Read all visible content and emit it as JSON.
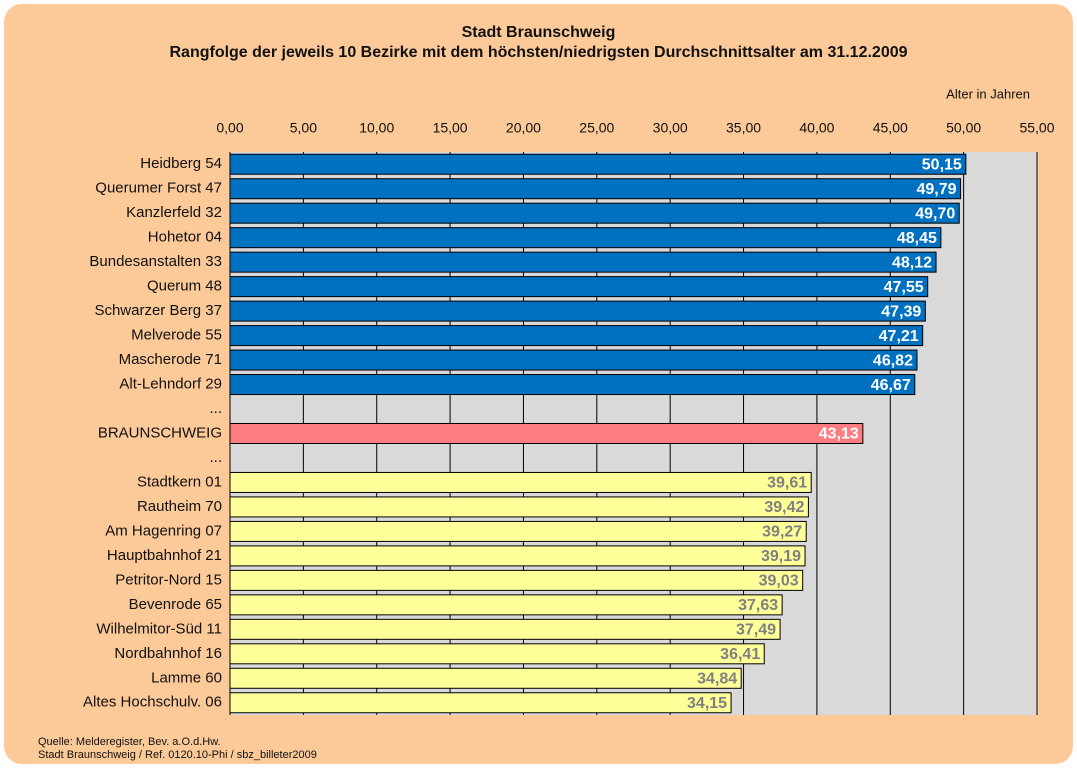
{
  "chart_data": {
    "type": "barh",
    "title": "Stadt Braunschweig",
    "subtitle": "Rangfolge der jeweils 10 Bezirke mit dem höchsten/niedrigsten  Durchschnittsalter  am 31.12.2009",
    "x_label": "Alter in Jahren",
    "notes": [
      "Quelle: Melderegister, Bev. a.O.d.Hw.",
      "Stadt Braunschweig / Ref. 0120.10-Phi / sbz_billeter2009"
    ],
    "categories": [
      "Heidberg 54",
      "Querumer Forst 47",
      "Kanzlerfeld 32",
      "Hohetor 04",
      "Bundesanstalten 33",
      "Querum 48",
      "Schwarzer Berg 37",
      "Melverode 55",
      "Mascherode 71",
      "Alt-Lehndorf 29",
      "...",
      "BRAUNSCHWEIG",
      "...",
      "Stadtkern 01",
      "Rautheim 70",
      "Am Hagenring 07",
      "Hauptbahnhof 21",
      "Petritor-Nord 15",
      "Bevenrode 65",
      "Wilhelmitor-Süd 11",
      "Nordbahnhof 16",
      "Lamme 60",
      "Altes Hochschulv. 06"
    ],
    "series": [
      {
        "color": "#0070c0",
        "label_color": "#ffffff",
        "values": [
          50.15,
          49.79,
          49.7,
          48.45,
          48.12,
          47.55,
          47.39,
          47.21,
          46.82,
          46.67,
          null,
          null,
          null,
          null,
          null,
          null,
          null,
          null,
          null,
          null,
          null,
          null,
          null
        ],
        "value_labels": [
          "50,15",
          "49,79",
          "49,70",
          "48,45",
          "48,12",
          "47,55",
          "47,39",
          "47,21",
          "46,82",
          "46,67",
          null,
          null,
          null,
          null,
          null,
          null,
          null,
          null,
          null,
          null,
          null,
          null,
          null
        ]
      },
      {
        "color": "#ff7c80",
        "label_color": "#ffffff",
        "values": [
          null,
          null,
          null,
          null,
          null,
          null,
          null,
          null,
          null,
          null,
          null,
          43.13,
          null,
          null,
          null,
          null,
          null,
          null,
          null,
          null,
          null,
          null,
          null
        ],
        "value_labels": [
          null,
          null,
          null,
          null,
          null,
          null,
          null,
          null,
          null,
          null,
          null,
          "43,13",
          null,
          null,
          null,
          null,
          null,
          null,
          null,
          null,
          null,
          null,
          null
        ]
      },
      {
        "color": "#ffff99",
        "label_color": "#808080",
        "values": [
          null,
          null,
          null,
          null,
          null,
          null,
          null,
          null,
          null,
          null,
          null,
          null,
          null,
          39.61,
          39.42,
          39.27,
          39.19,
          39.03,
          37.63,
          37.49,
          36.41,
          34.84,
          34.15
        ],
        "value_labels": [
          null,
          null,
          null,
          null,
          null,
          null,
          null,
          null,
          null,
          null,
          null,
          null,
          null,
          "39,61",
          "39,42",
          "39,27",
          "39,19",
          "39,03",
          "37,63",
          "37,49",
          "36,41",
          "34,84",
          "34,15"
        ]
      }
    ],
    "xlim": [
      0,
      55
    ],
    "xticks": [
      {
        "value": 0,
        "label": "0,00"
      },
      {
        "value": 5,
        "label": "5,00"
      },
      {
        "value": 10,
        "label": "10,00"
      },
      {
        "value": 15,
        "label": "15,00"
      },
      {
        "value": 20,
        "label": "20,00"
      },
      {
        "value": 25,
        "label": "25,00"
      },
      {
        "value": 30,
        "label": "30,00"
      },
      {
        "value": 35,
        "label": "35,00"
      },
      {
        "value": 40,
        "label": "40,00"
      },
      {
        "value": 45,
        "label": "45,00"
      },
      {
        "value": 50,
        "label": "50,00"
      },
      {
        "value": 55,
        "label": "55,00"
      }
    ],
    "grid": true
  }
}
